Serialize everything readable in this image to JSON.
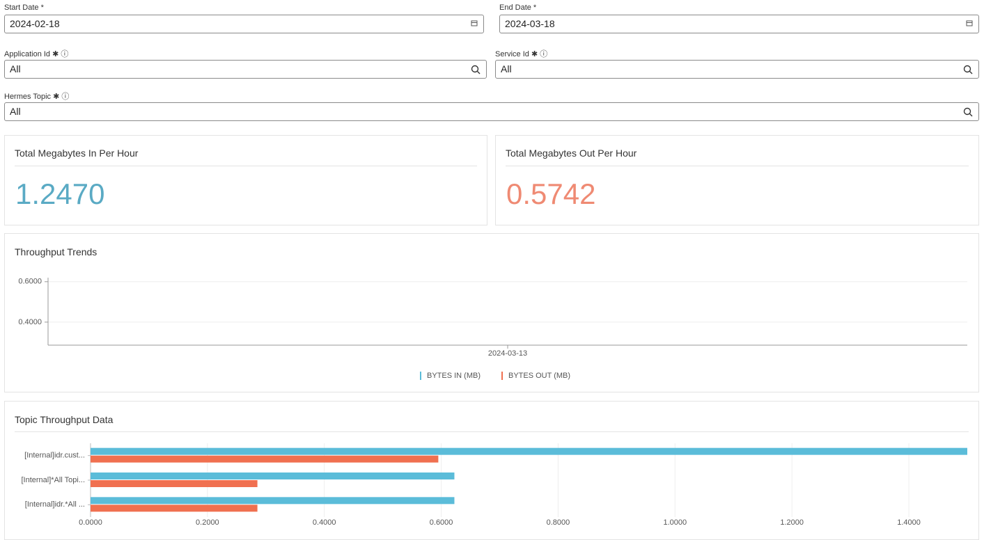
{
  "form": {
    "start_date": {
      "label": "Start Date *",
      "value": "2024-02-18"
    },
    "end_date": {
      "label": "End Date *",
      "value": "2024-03-18"
    },
    "application_id": {
      "label": "Application Id",
      "value": "All"
    },
    "service_id": {
      "label": "Service Id",
      "value": "All"
    },
    "hermes_topic": {
      "label": "Hermes Topic",
      "value": "All"
    }
  },
  "kpis": [
    {
      "title": "Total Megabytes In Per Hour",
      "value": "1.2470",
      "color": "#5aaac4"
    },
    {
      "title": "Total Megabytes Out Per Hour",
      "value": "0.5742",
      "color": "#ef8a73"
    }
  ],
  "chart_data": [
    {
      "type": "line",
      "title": "Throughput Trends",
      "categories": [
        "2024-03-13"
      ],
      "series": [
        {
          "name": "BYTES IN (MB)",
          "color": "#5bbcd9",
          "values": [
            null
          ]
        },
        {
          "name": "BYTES OUT (MB)",
          "color": "#f07050",
          "values": [
            null
          ]
        }
      ],
      "ylim": [
        0.286,
        0.62
      ],
      "yticks": [
        {
          "value": 0.4,
          "label": "0.4000"
        },
        {
          "value": 0.6,
          "label": "0.6000"
        }
      ],
      "grid": true
    },
    {
      "type": "hbar",
      "title": "Topic Throughput Data",
      "categories": [
        "[Internal]idr.cust...",
        "[Internal]*All Topi...",
        "[Internal]idr.*All ..."
      ],
      "series": [
        {
          "color": "#5bbcd9",
          "values": [
            1.5,
            0.6225,
            0.6225
          ]
        },
        {
          "color": "#f07050",
          "values": [
            0.595,
            0.2855,
            0.2855
          ]
        }
      ],
      "xlim": [
        0,
        1.5
      ],
      "xticks": [
        {
          "value": 0,
          "label": "0.0000"
        },
        {
          "value": 0.2,
          "label": "0.2000"
        },
        {
          "value": 0.4,
          "label": "0.4000"
        },
        {
          "value": 0.6,
          "label": "0.6000"
        },
        {
          "value": 0.8,
          "label": "0.8000"
        },
        {
          "value": 1.0,
          "label": "1.0000"
        },
        {
          "value": 1.2,
          "label": "1.2000"
        },
        {
          "value": 1.4,
          "label": "1.4000"
        }
      ],
      "grid": true
    }
  ]
}
